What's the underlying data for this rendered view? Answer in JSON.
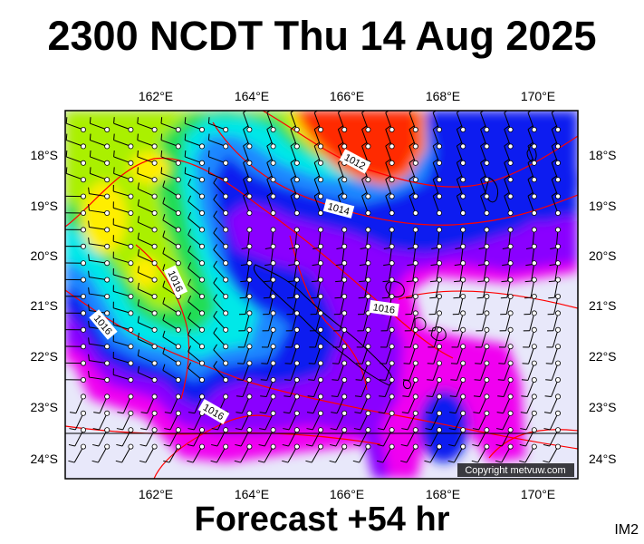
{
  "header": {
    "title": "2300 NCDT Thu 14 Aug 2025"
  },
  "footer": {
    "forecast": "Forecast +54 hr",
    "image_code": "IM2"
  },
  "map": {
    "lon_ticks": [
      "162°E",
      "164°E",
      "166°E",
      "168°E",
      "170°E"
    ],
    "lat_ticks": [
      "18°S",
      "19°S",
      "20°S",
      "21°S",
      "22°S",
      "23°S",
      "24°S"
    ],
    "isobar_labels": [
      "1012",
      "1014",
      "1016",
      "1016",
      "1016",
      "1016"
    ],
    "copyright": "Copyright metvuw.com",
    "colors": {
      "dry": "#e8e8fa",
      "magenta": "#f000f0",
      "violet": "#8a00ff",
      "blue": "#0a1cf0",
      "lightblue": "#1e88ff",
      "cyan": "#00e8e8",
      "green": "#22dd55",
      "yellowgreen": "#aaf000",
      "yellow": "#ffee00",
      "orange": "#ff8800",
      "red": "#ff2a00",
      "isobar": "#ff0000",
      "coast": "#000000"
    }
  }
}
